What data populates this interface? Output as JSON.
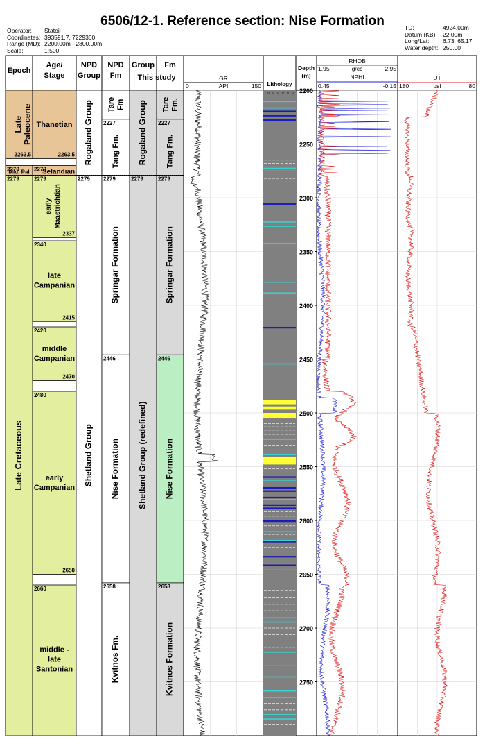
{
  "title": "6506/12-1. Reference section: Nise Formation",
  "meta_left": [
    {
      "k": "Operator:",
      "v": "Statoil"
    },
    {
      "k": "Coordinates:",
      "v": "393591.7, 7229360"
    },
    {
      "k": "Range (MD):",
      "v": "2200.00m - 2800.00m"
    },
    {
      "k": "Scale:",
      "v": "1:500"
    }
  ],
  "meta_right": [
    {
      "k": "TD:",
      "v": "4924.00m"
    },
    {
      "k": "Datum (KB):",
      "v": "22.00m"
    },
    {
      "k": "Long/Lat:",
      "v": "6.73, 65.17"
    },
    {
      "k": "Water depth:",
      "v": "250.00"
    }
  ],
  "headers": {
    "epoch": "Epoch",
    "age": "Age/ Stage",
    "npd_group": "NPD Group",
    "npd_fm": "NPD Fm",
    "group_this": "Group",
    "fm_this": "Fm",
    "this_study": "This study",
    "lithology": "Lithology",
    "depth": "Depth (m)",
    "gr": {
      "name": "GR",
      "unit": "API",
      "min": "0",
      "max": "150"
    },
    "rhob": {
      "name": "RHOB",
      "unit": "g/cc",
      "min": "1.95",
      "max": "2.95"
    },
    "nphi": {
      "name": "NPHI",
      "min": "0.45",
      "max": "-0.15"
    },
    "dt": {
      "name": "DT",
      "unit": "usf",
      "min": "180",
      "max": "80"
    }
  },
  "colors": {
    "paleocene": "#e8c597",
    "cretaceous": "#e3ee9f",
    "grey": "#d9d9d9",
    "nise_green": "#bbefc3",
    "litho_grey": "#808080",
    "cyan": "#37d1d1",
    "blue": "#1b1bb5",
    "yellow": "#ffff33",
    "red": "#e02020",
    "blue_curve": "#1f1fd8"
  },
  "epochs": [
    {
      "label": "Late Paleocene",
      "top": 2200,
      "base": 2263.5,
      "color": "paleocene",
      "base_label": "2263.5"
    },
    {
      "label": "Mid. Pal",
      "top": 2270,
      "base": 2279,
      "color": "paleocene",
      "top_label": "2270"
    },
    {
      "label": "Late Cretaceous",
      "top": 2279,
      "base": 2800,
      "color": "cretaceous",
      "top_label": "2279"
    }
  ],
  "stages": [
    {
      "label": "Thanetian",
      "top": 2200,
      "base": 2263.5,
      "color": "paleocene",
      "base_label": "2263.5"
    },
    {
      "label": "Selandian",
      "top": 2270,
      "base": 2279,
      "color": "paleocene",
      "top_label": "2270"
    },
    {
      "label": "early Maastrichtian",
      "top": 2279,
      "base": 2337,
      "color": "cretaceous",
      "top_label": "2279",
      "base_label": "2337",
      "vertical": true
    },
    {
      "label": "late Campanian",
      "top": 2340,
      "base": 2415,
      "color": "cretaceous",
      "top_label": "2340",
      "base_label": "2415"
    },
    {
      "label": "middle Campanian",
      "top": 2420,
      "base": 2470,
      "color": "cretaceous",
      "top_label": "2420",
      "base_label": "2470"
    },
    {
      "label": "early Campanian",
      "top": 2480,
      "base": 2650,
      "color": "cretaceous",
      "top_label": "2480",
      "base_label": "2650"
    },
    {
      "label": "middle - late Santonian",
      "top": 2660,
      "base": 2800,
      "color": "cretaceous",
      "top_label": "2660"
    }
  ],
  "npd_groups": [
    {
      "label": "Rogaland Group",
      "top": 2200,
      "base": 2279
    },
    {
      "label": "Shetland Group",
      "top": 2279,
      "base": 2800,
      "top_label": "2279"
    }
  ],
  "npd_fms": [
    {
      "label": "Tare Fm",
      "top": 2200,
      "base": 2227
    },
    {
      "label": "Tang Fm.",
      "top": 2227,
      "base": 2279,
      "top_label": "2227"
    },
    {
      "label": "Springar Formation",
      "top": 2279,
      "base": 2446,
      "top_label": "2279"
    },
    {
      "label": "Nise Formation",
      "top": 2446,
      "base": 2658,
      "top_label": "2446"
    },
    {
      "label": "Kvitnos Fm.",
      "top": 2658,
      "base": 2800,
      "top_label": "2658"
    }
  ],
  "groups_this": [
    {
      "label": "Rogaland Group",
      "top": 2200,
      "base": 2279,
      "color": "grey"
    },
    {
      "label": "Shetland Group (redefined)",
      "top": 2279,
      "base": 2800,
      "color": "grey",
      "top_label": "2279"
    }
  ],
  "fms_this": [
    {
      "label": "Tare Fm.",
      "top": 2200,
      "base": 2227,
      "color": "grey"
    },
    {
      "label": "Tang Fm.",
      "top": 2227,
      "base": 2279,
      "color": "grey",
      "top_label": "2227"
    },
    {
      "label": "Springar Formation",
      "top": 2279,
      "base": 2446,
      "color": "grey",
      "top_label": "2279"
    },
    {
      "label": "Nise Formation",
      "top": 2446,
      "base": 2658,
      "color": "nise_green",
      "top_label": "2446"
    },
    {
      "label": "Kvitnos Formation",
      "top": 2658,
      "base": 2800,
      "color": "grey",
      "top_label": "2658"
    }
  ],
  "depth_ticks": [
    2200,
    2250,
    2300,
    2350,
    2400,
    2450,
    2500,
    2550,
    2600,
    2650,
    2700,
    2750
  ],
  "depth_range": [
    2200,
    2800
  ],
  "lithology_beds": {
    "cyan": [
      2210,
      2216,
      2272,
      2322,
      2326,
      2342,
      2378,
      2388,
      2454,
      2524,
      2538,
      2562,
      2580,
      2610,
      2618,
      2690,
      2694,
      2722,
      2745,
      2758,
      2764,
      2780,
      2784
    ],
    "blue": [
      2219,
      2223,
      2227,
      2305,
      2420,
      2559,
      2569,
      2572,
      2578,
      2585,
      2588,
      2600,
      2619,
      2633,
      2641
    ],
    "yellow": [
      [
        2488,
        2492
      ],
      [
        2494,
        2497
      ],
      [
        2500,
        2505
      ],
      [
        2541,
        2548
      ]
    ],
    "dashed": [
      2265,
      2268,
      2275,
      2282,
      2510,
      2513,
      2516,
      2520,
      2530,
      2545,
      2552,
      2592,
      2596,
      2605,
      2613,
      2625,
      2646,
      2665,
      2672,
      2678,
      2684,
      2700,
      2706,
      2712,
      2718,
      2735,
      2741,
      2770,
      2776,
      2790
    ]
  }
}
